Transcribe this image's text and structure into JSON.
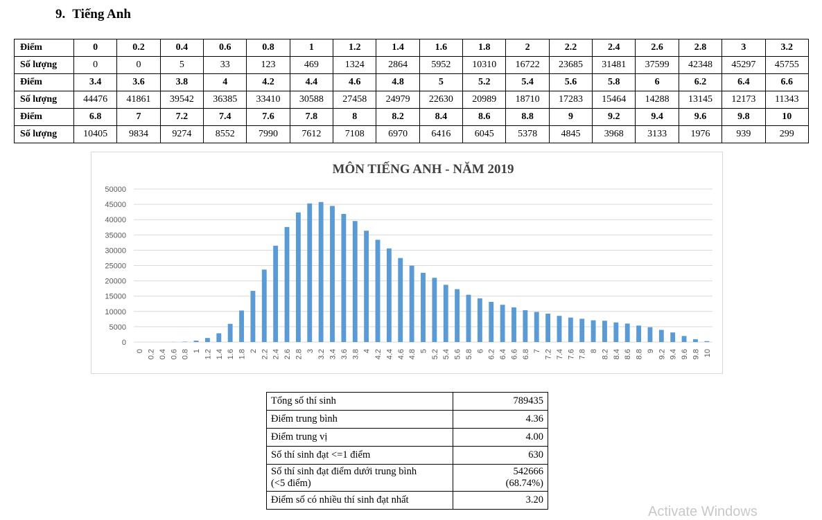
{
  "heading": {
    "number": "9.",
    "title": "Tiếng Anh"
  },
  "score_table": {
    "row_label_score": "Điểm",
    "row_label_count": "Số lượng",
    "blocks": [
      {
        "scores": [
          "0",
          "0.2",
          "0.4",
          "0.6",
          "0.8",
          "1",
          "1.2",
          "1.4",
          "1.6",
          "1.8",
          "2",
          "2.2",
          "2.4",
          "2.6",
          "2.8",
          "3",
          "3.2"
        ],
        "counts": [
          "0",
          "0",
          "5",
          "33",
          "123",
          "469",
          "1324",
          "2864",
          "5952",
          "10310",
          "16722",
          "23685",
          "31481",
          "37599",
          "42348",
          "45297",
          "45755"
        ]
      },
      {
        "scores": [
          "3.4",
          "3.6",
          "3.8",
          "4",
          "4.2",
          "4.4",
          "4.6",
          "4.8",
          "5",
          "5.2",
          "5.4",
          "5.6",
          "5.8",
          "6",
          "6.2",
          "6.4",
          "6.6"
        ],
        "counts": [
          "44476",
          "41861",
          "39542",
          "36385",
          "33410",
          "30588",
          "27458",
          "24979",
          "22630",
          "20989",
          "18710",
          "17283",
          "15464",
          "14288",
          "13145",
          "12173",
          "11343"
        ]
      },
      {
        "scores": [
          "6.8",
          "7",
          "7.2",
          "7.4",
          "7.6",
          "7.8",
          "8",
          "8.2",
          "8.4",
          "8.6",
          "8.8",
          "9",
          "9.2",
          "9.4",
          "9.6",
          "9.8",
          "10"
        ],
        "counts": [
          "10405",
          "9834",
          "9274",
          "8552",
          "7990",
          "7612",
          "7108",
          "6970",
          "6416",
          "6045",
          "5378",
          "4845",
          "3968",
          "3133",
          "1976",
          "939",
          "299"
        ]
      }
    ]
  },
  "chart_data": {
    "type": "bar",
    "title": "MÔN TIẾNG ANH - NĂM 2019",
    "xlabel": "",
    "ylabel": "",
    "ylim": [
      0,
      50000
    ],
    "yticks": [
      "0",
      "5000",
      "10000",
      "15000",
      "20000",
      "25000",
      "30000",
      "35000",
      "40000",
      "45000",
      "50000"
    ],
    "grid": true,
    "color": "#5b9bd5",
    "categories": [
      "0",
      "0.2",
      "0.4",
      "0.6",
      "0.8",
      "1",
      "1.2",
      "1.4",
      "1.6",
      "1.8",
      "2",
      "2.2",
      "2.4",
      "2.6",
      "2.8",
      "3",
      "3.2",
      "3.4",
      "3.6",
      "3.8",
      "4",
      "4.2",
      "4.4",
      "4.6",
      "4.8",
      "5",
      "5.2",
      "5.4",
      "5.6",
      "5.8",
      "6",
      "6.2",
      "6.4",
      "6.6",
      "6.8",
      "7",
      "7.2",
      "7.4",
      "7.6",
      "7.8",
      "8",
      "8.2",
      "8.4",
      "8.6",
      "8.8",
      "9",
      "9.2",
      "9.4",
      "9.6",
      "9.8",
      "10"
    ],
    "values": [
      0,
      0,
      5,
      33,
      123,
      469,
      1324,
      2864,
      5952,
      10310,
      16722,
      23685,
      31481,
      37599,
      42348,
      45297,
      45755,
      44476,
      41861,
      39542,
      36385,
      33410,
      30588,
      27458,
      24979,
      22630,
      20989,
      18710,
      17283,
      15464,
      14288,
      13145,
      12173,
      11343,
      10405,
      9834,
      9274,
      8552,
      7990,
      7612,
      7108,
      6970,
      6416,
      6045,
      5378,
      4845,
      3968,
      3133,
      1976,
      939,
      299
    ]
  },
  "stats": [
    {
      "label": "Tổng số thí sinh",
      "value": "789435"
    },
    {
      "label": "Điểm trung bình",
      "value": "4.36"
    },
    {
      "label": "Điểm trung vị",
      "value": "4.00"
    },
    {
      "label": "Số thí sinh đạt <=1 điểm",
      "value": "630"
    },
    {
      "label": "Số thí sinh đạt điểm  dưới trung bình",
      "label2": "(<5 điểm)",
      "value": "542666",
      "value2": "(68.74%)"
    },
    {
      "label": "Điểm số có nhiều thí sinh đạt nhất",
      "value": "3.20"
    }
  ],
  "watermark": "Activate Windows"
}
